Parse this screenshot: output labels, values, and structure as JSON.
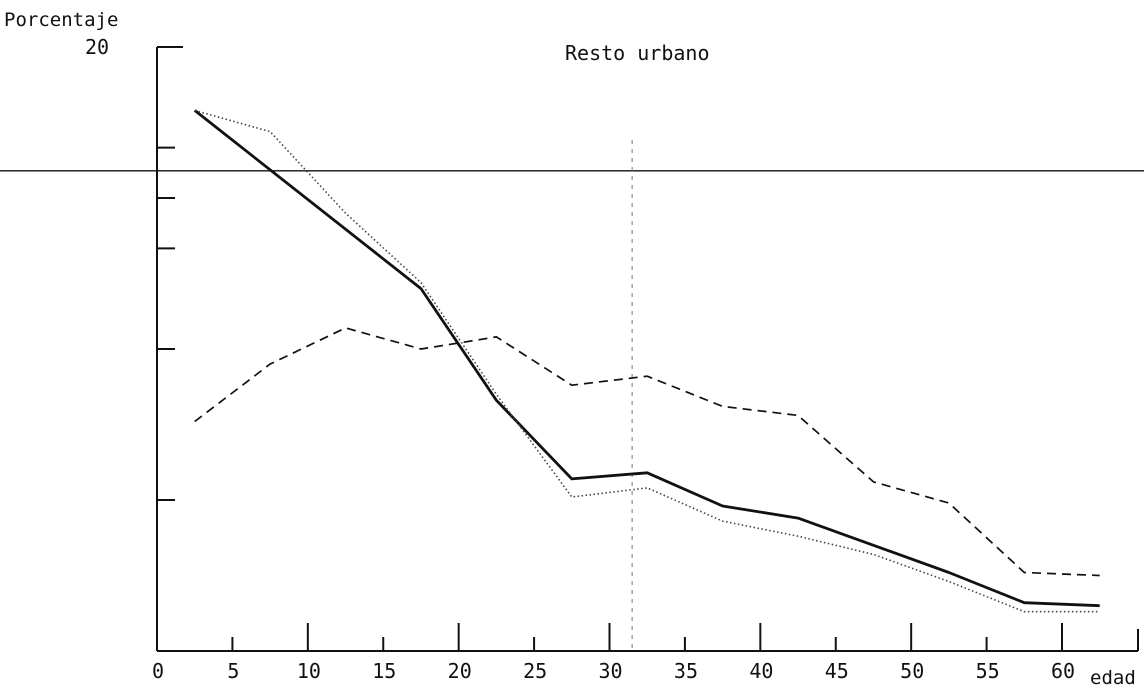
{
  "chart_data": {
    "type": "line",
    "title": "Resto urbano",
    "ylabel": "Porcentaje",
    "xlabel": "edad",
    "ytick_labels": [
      {
        "value": 20,
        "label": "20"
      }
    ],
    "yticks": [
      16.67,
      15,
      13.33,
      10,
      5
    ],
    "xticks": [
      0,
      5,
      10,
      15,
      20,
      25,
      30,
      35,
      40,
      45,
      50,
      55,
      60
    ],
    "xtick_labels": [
      "0",
      "5",
      "10",
      "15",
      "20",
      "25",
      "30",
      "35",
      "40",
      "45",
      "50",
      "55",
      "60"
    ],
    "xlim": [
      0,
      65
    ],
    "ylim": [
      0,
      20
    ],
    "reference_y": 15.9,
    "vertical_guide_x": 31.5,
    "series": [
      {
        "style": "solid",
        "color": "#111111",
        "x": [
          2.5,
          17.5,
          22.5,
          27.5,
          32.5,
          37.5,
          42.5,
          47.5,
          52.5,
          57.5,
          62.5
        ],
        "y": [
          17.9,
          12.0,
          8.3,
          5.7,
          5.9,
          4.8,
          4.4,
          3.5,
          2.6,
          1.6,
          1.5
        ]
      },
      {
        "style": "dotted",
        "color": "#444444",
        "x": [
          2.5,
          7.5,
          12.5,
          17.5,
          22.5,
          27.5,
          32.5,
          37.5,
          42.5,
          47.5,
          52.5,
          57.5,
          62.5
        ],
        "y": [
          17.9,
          17.2,
          14.5,
          12.2,
          8.5,
          5.1,
          5.4,
          4.3,
          3.8,
          3.2,
          2.3,
          1.3,
          1.3
        ]
      },
      {
        "style": "dashed",
        "color": "#111111",
        "x": [
          2.5,
          7.5,
          12.5,
          17.5,
          22.5,
          27.5,
          32.5,
          37.5,
          42.5,
          47.5,
          52.5,
          57.5,
          62.5
        ],
        "y": [
          7.6,
          9.5,
          10.7,
          10.0,
          10.4,
          8.8,
          9.1,
          8.1,
          7.8,
          5.6,
          4.9,
          2.6,
          2.5
        ]
      }
    ]
  }
}
